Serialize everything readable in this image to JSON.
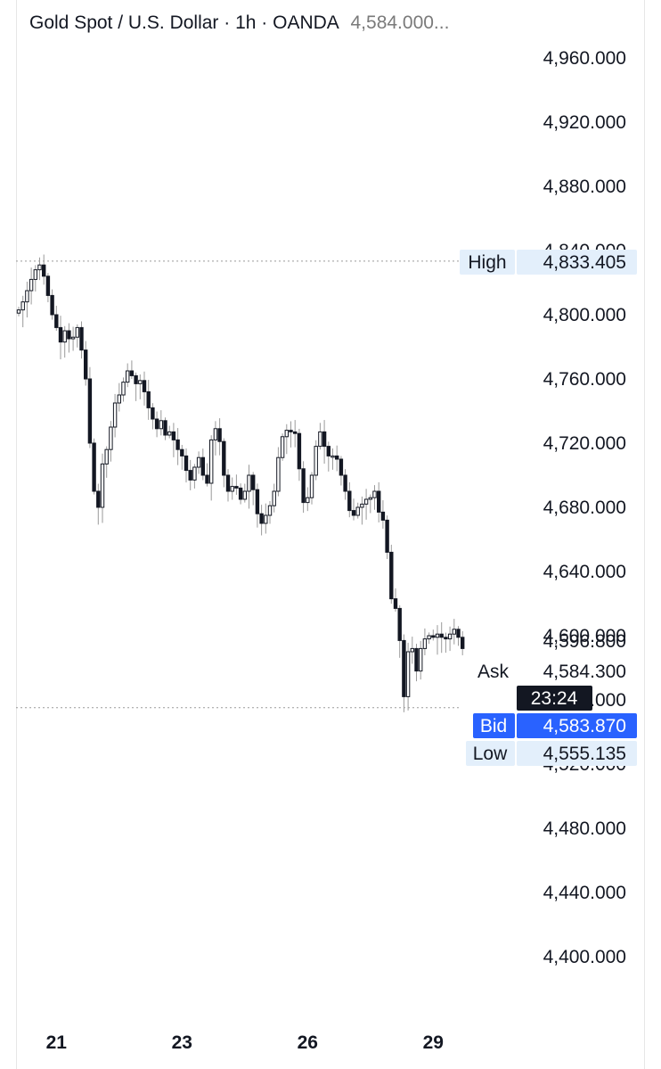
{
  "header": {
    "symbol": "Gold Spot / U.S. Dollar",
    "interval": "1h",
    "broker": "OANDA",
    "last_price": "4,584.000..."
  },
  "chart_data": {
    "type": "candlestick",
    "title": "Gold Spot / U.S. Dollar · 1h · OANDA",
    "y_ticks": [
      {
        "value": 4960,
        "label": "4,960.000"
      },
      {
        "value": 4920,
        "label": "4,920.000"
      },
      {
        "value": 4880,
        "label": "4,880.000"
      },
      {
        "value": 4840,
        "label": "4,840.000"
      },
      {
        "value": 4800,
        "label": "4,800.000"
      },
      {
        "value": 4760,
        "label": "4,760.000"
      },
      {
        "value": 4720,
        "label": "4,720.000"
      },
      {
        "value": 4680,
        "label": "4,680.000"
      },
      {
        "value": 4640,
        "label": "4,640.000"
      },
      {
        "value": 4600,
        "label": "4,600.000"
      },
      {
        "value": 4560,
        "label": "4,560.000"
      },
      {
        "value": 4520,
        "label": "4,520.000"
      },
      {
        "value": 4480,
        "label": "4,480.000"
      },
      {
        "value": 4440,
        "label": "4,440.000"
      },
      {
        "value": 4400,
        "label": "4,400.000"
      }
    ],
    "x_ticks": [
      {
        "label": "21",
        "bar": 9
      },
      {
        "label": "23",
        "bar": 39
      },
      {
        "label": "26",
        "bar": 69
      },
      {
        "label": "29",
        "bar": 99
      }
    ],
    "ylim": [
      4380,
      4980
    ],
    "levels": {
      "high": {
        "label": "High",
        "value": 4833.405,
        "text": "4,833.405"
      },
      "low": {
        "label": "Low",
        "value": 4555.135,
        "text": "4,555.135"
      },
      "ask": {
        "label": "Ask",
        "value": 4584.3,
        "text": "4,584.300"
      },
      "bid": {
        "label": "Bid",
        "value": 4583.87,
        "text": "4,583.870"
      },
      "last": {
        "value": 4596.8,
        "text": "4,596.800"
      },
      "countdown": "23:24"
    },
    "close_path": [
      4803,
      4808,
      4815,
      4822,
      4828,
      4831,
      4824,
      4812,
      4800,
      4792,
      4783,
      4790,
      4785,
      4786,
      4792,
      4778,
      4760,
      4720,
      4690,
      4680,
      4707,
      4716,
      4730,
      4745,
      4750,
      4758,
      4765,
      4762,
      4757,
      4759,
      4752,
      4742,
      4735,
      4729,
      4734,
      4725,
      4727,
      4722,
      4716,
      4712,
      4703,
      4697,
      4705,
      4711,
      4700,
      4695,
      4722,
      4729,
      4721,
      4700,
      4690,
      4693,
      4692,
      4685,
      4690,
      4700,
      4691,
      4676,
      4670,
      4675,
      4681,
      4690,
      4711,
      4724,
      4728,
      4727,
      4726,
      4704,
      4683,
      4686,
      4700,
      4718,
      4727,
      4718,
      4712,
      4712,
      4710,
      4700,
      4690,
      4678,
      4675,
      4680,
      4682,
      4685,
      4686,
      4690,
      4677,
      4672,
      4652,
      4623,
      4617,
      4597,
      4562,
      4590,
      4592,
      4578,
      4592,
      4598,
      4600,
      4599,
      4601,
      4599,
      4598,
      4601,
      4604,
      4599,
      4592
    ]
  }
}
